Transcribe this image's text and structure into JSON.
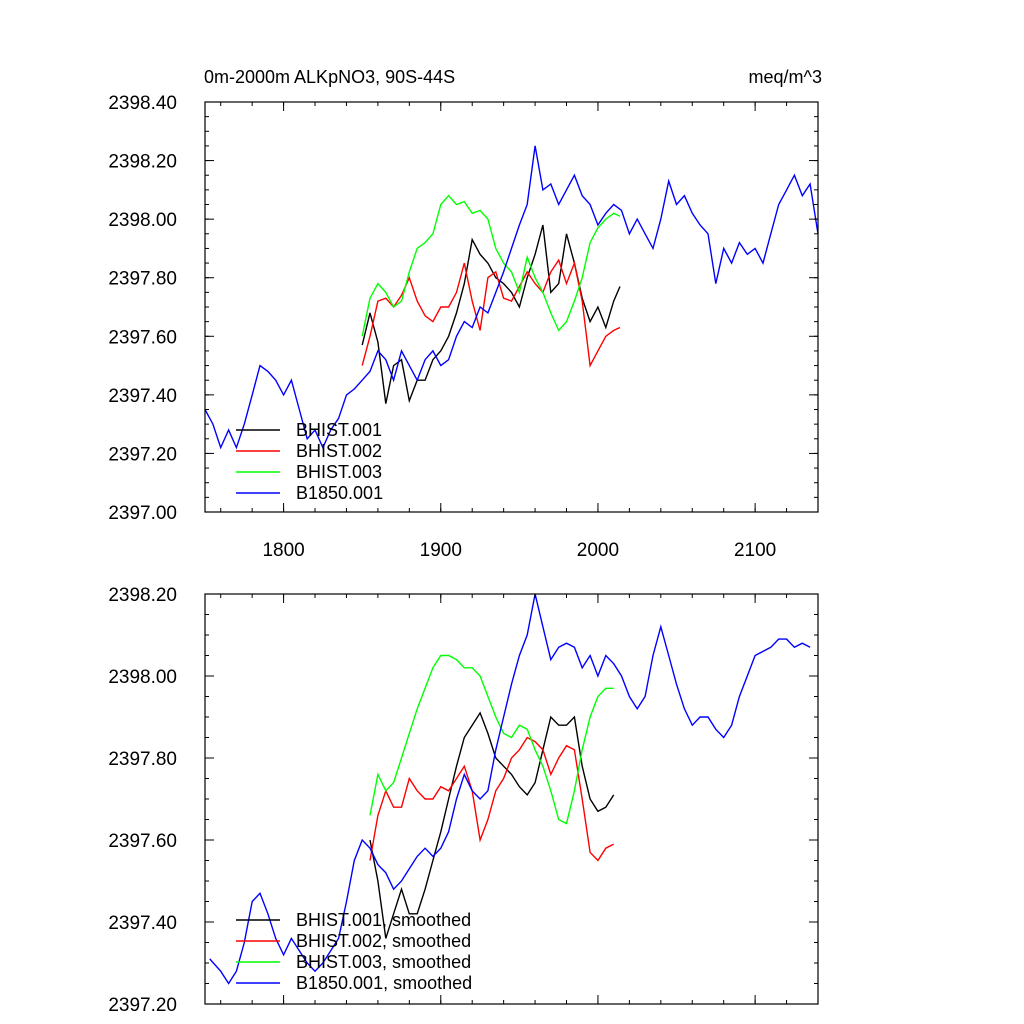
{
  "chart_data": [
    {
      "type": "line",
      "title_left": "0m-2000m ALKpNO3, 90S-44S",
      "title_right": "meq/m^3",
      "xlim": [
        1750,
        2140
      ],
      "ylim": [
        2397.0,
        2398.4
      ],
      "xticks": [
        1800,
        1900,
        2000,
        2100
      ],
      "xtick_labels": [
        "1800",
        "1900",
        "2000",
        "2100"
      ],
      "yticks": [
        2397.0,
        2397.2,
        2397.4,
        2397.6,
        2397.8,
        2398.0,
        2398.2,
        2398.4
      ],
      "ytick_labels": [
        "2397.00",
        "2397.20",
        "2397.40",
        "2397.60",
        "2397.80",
        "2398.00",
        "2398.20",
        "2398.40"
      ],
      "legend_position": "bottom-left",
      "series": [
        {
          "name": "BHIST.001",
          "color": "#000000",
          "x": [
            1850,
            1855,
            1860,
            1865,
            1870,
            1875,
            1880,
            1885,
            1890,
            1895,
            1900,
            1905,
            1910,
            1915,
            1920,
            1925,
            1930,
            1935,
            1940,
            1945,
            1950,
            1955,
            1960,
            1965,
            1970,
            1975,
            1980,
            1985,
            1990,
            1995,
            2000,
            2005,
            2010,
            2014
          ],
          "y": [
            2397.57,
            2397.68,
            2397.58,
            2397.37,
            2397.5,
            2397.52,
            2397.38,
            2397.45,
            2397.45,
            2397.52,
            2397.55,
            2397.6,
            2397.68,
            2397.78,
            2397.93,
            2397.88,
            2397.85,
            2397.8,
            2397.78,
            2397.75,
            2397.7,
            2397.8,
            2397.88,
            2397.98,
            2397.75,
            2397.78,
            2397.95,
            2397.85,
            2397.73,
            2397.65,
            2397.7,
            2397.63,
            2397.72,
            2397.77
          ]
        },
        {
          "name": "BHIST.002",
          "color": "#ff0000",
          "x": [
            1850,
            1855,
            1860,
            1865,
            1870,
            1875,
            1880,
            1885,
            1890,
            1895,
            1900,
            1905,
            1910,
            1915,
            1920,
            1925,
            1930,
            1935,
            1940,
            1945,
            1950,
            1955,
            1960,
            1965,
            1970,
            1975,
            1980,
            1985,
            1990,
            1995,
            2000,
            2005,
            2010,
            2014
          ],
          "y": [
            2397.5,
            2397.6,
            2397.72,
            2397.73,
            2397.7,
            2397.74,
            2397.8,
            2397.72,
            2397.67,
            2397.65,
            2397.7,
            2397.7,
            2397.75,
            2397.85,
            2397.72,
            2397.62,
            2397.8,
            2397.82,
            2397.73,
            2397.72,
            2397.77,
            2397.82,
            2397.78,
            2397.75,
            2397.82,
            2397.86,
            2397.78,
            2397.85,
            2397.72,
            2397.5,
            2397.55,
            2397.6,
            2397.62,
            2397.63
          ]
        },
        {
          "name": "BHIST.003",
          "color": "#00ff00",
          "x": [
            1850,
            1855,
            1860,
            1865,
            1870,
            1875,
            1880,
            1885,
            1890,
            1895,
            1900,
            1905,
            1910,
            1915,
            1920,
            1925,
            1930,
            1935,
            1940,
            1945,
            1950,
            1955,
            1960,
            1965,
            1970,
            1975,
            1980,
            1985,
            1990,
            1995,
            2000,
            2005,
            2010,
            2014
          ],
          "y": [
            2397.6,
            2397.73,
            2397.78,
            2397.75,
            2397.7,
            2397.72,
            2397.82,
            2397.9,
            2397.92,
            2397.95,
            2398.05,
            2398.08,
            2398.05,
            2398.06,
            2398.02,
            2398.03,
            2398.0,
            2397.9,
            2397.85,
            2397.82,
            2397.75,
            2397.87,
            2397.8,
            2397.75,
            2397.68,
            2397.62,
            2397.65,
            2397.72,
            2397.8,
            2397.92,
            2397.97,
            2398.0,
            2398.02,
            2398.01
          ]
        },
        {
          "name": "B1850.001",
          "color": "#0000ff",
          "x": [
            1750,
            1755,
            1760,
            1765,
            1770,
            1775,
            1780,
            1785,
            1790,
            1795,
            1800,
            1805,
            1810,
            1815,
            1820,
            1825,
            1830,
            1835,
            1840,
            1845,
            1850,
            1855,
            1860,
            1865,
            1870,
            1875,
            1880,
            1885,
            1890,
            1895,
            1900,
            1905,
            1910,
            1915,
            1920,
            1925,
            1930,
            1935,
            1940,
            1945,
            1950,
            1955,
            1960,
            1965,
            1970,
            1975,
            1980,
            1985,
            1990,
            1995,
            2000,
            2005,
            2010,
            2015,
            2020,
            2025,
            2030,
            2035,
            2040,
            2045,
            2050,
            2055,
            2060,
            2065,
            2070,
            2075,
            2080,
            2085,
            2090,
            2095,
            2100,
            2105,
            2110,
            2115,
            2120,
            2125,
            2130,
            2135,
            2140
          ],
          "y": [
            2397.35,
            2397.3,
            2397.22,
            2397.28,
            2397.22,
            2397.3,
            2397.4,
            2397.5,
            2397.48,
            2397.45,
            2397.4,
            2397.45,
            2397.35,
            2397.25,
            2397.28,
            2397.22,
            2397.28,
            2397.32,
            2397.4,
            2397.42,
            2397.45,
            2397.48,
            2397.55,
            2397.52,
            2397.45,
            2397.55,
            2397.5,
            2397.45,
            2397.52,
            2397.55,
            2397.5,
            2397.52,
            2397.6,
            2397.65,
            2397.63,
            2397.7,
            2397.68,
            2397.75,
            2397.82,
            2397.9,
            2397.98,
            2398.05,
            2398.25,
            2398.1,
            2398.12,
            2398.05,
            2398.1,
            2398.15,
            2398.08,
            2398.05,
            2397.98,
            2398.02,
            2398.05,
            2398.03,
            2397.95,
            2398.0,
            2397.95,
            2397.9,
            2398.0,
            2398.13,
            2398.05,
            2398.08,
            2398.02,
            2397.98,
            2397.95,
            2397.78,
            2397.9,
            2397.85,
            2397.92,
            2397.88,
            2397.9,
            2397.85,
            2397.95,
            2398.05,
            2398.1,
            2398.15,
            2398.08,
            2398.12,
            2397.95
          ]
        }
      ]
    },
    {
      "type": "line",
      "xlim": [
        1750,
        2140
      ],
      "ylim": [
        2397.2,
        2398.2
      ],
      "xticks": [
        1800,
        1900,
        2000,
        2100
      ],
      "yticks": [
        2397.2,
        2397.4,
        2397.6,
        2397.8,
        2398.0,
        2398.2
      ],
      "ytick_labels": [
        "2397.20",
        "2397.40",
        "2397.60",
        "2397.80",
        "2398.00",
        "2398.20"
      ],
      "legend_position": "bottom-left",
      "series": [
        {
          "name": "BHIST.001, smoothed",
          "color": "#000000",
          "x": [
            1855,
            1860,
            1865,
            1870,
            1875,
            1880,
            1885,
            1890,
            1895,
            1900,
            1905,
            1910,
            1915,
            1920,
            1925,
            1930,
            1935,
            1940,
            1945,
            1950,
            1955,
            1960,
            1965,
            1970,
            1975,
            1980,
            1985,
            1990,
            1995,
            2000,
            2005,
            2010
          ],
          "y": [
            2397.6,
            2397.5,
            2397.36,
            2397.42,
            2397.48,
            2397.42,
            2397.42,
            2397.48,
            2397.55,
            2397.62,
            2397.7,
            2397.78,
            2397.85,
            2397.88,
            2397.91,
            2397.86,
            2397.8,
            2397.78,
            2397.76,
            2397.73,
            2397.71,
            2397.74,
            2397.82,
            2397.9,
            2397.88,
            2397.88,
            2397.9,
            2397.78,
            2397.7,
            2397.67,
            2397.68,
            2397.71
          ]
        },
        {
          "name": "BHIST.002, smoothed",
          "color": "#ff0000",
          "x": [
            1855,
            1860,
            1865,
            1870,
            1875,
            1880,
            1885,
            1890,
            1895,
            1900,
            1905,
            1910,
            1915,
            1920,
            1925,
            1930,
            1935,
            1940,
            1945,
            1950,
            1955,
            1960,
            1965,
            1970,
            1975,
            1980,
            1985,
            1990,
            1995,
            2000,
            2005,
            2010
          ],
          "y": [
            2397.55,
            2397.66,
            2397.72,
            2397.68,
            2397.68,
            2397.75,
            2397.72,
            2397.7,
            2397.7,
            2397.73,
            2397.72,
            2397.75,
            2397.78,
            2397.72,
            2397.6,
            2397.65,
            2397.72,
            2397.75,
            2397.8,
            2397.82,
            2397.85,
            2397.84,
            2397.82,
            2397.76,
            2397.8,
            2397.83,
            2397.82,
            2397.7,
            2397.57,
            2397.55,
            2397.58,
            2397.59
          ]
        },
        {
          "name": "BHIST.003, smoothed",
          "color": "#00ff00",
          "x": [
            1855,
            1860,
            1865,
            1870,
            1875,
            1880,
            1885,
            1890,
            1895,
            1900,
            1905,
            1910,
            1915,
            1920,
            1925,
            1930,
            1935,
            1940,
            1945,
            1950,
            1955,
            1960,
            1965,
            1970,
            1975,
            1980,
            1985,
            1990,
            1995,
            2000,
            2005,
            2010
          ],
          "y": [
            2397.66,
            2397.76,
            2397.72,
            2397.74,
            2397.8,
            2397.86,
            2397.92,
            2397.97,
            2398.02,
            2398.05,
            2398.05,
            2398.04,
            2398.02,
            2398.02,
            2398.0,
            2397.95,
            2397.9,
            2397.86,
            2397.85,
            2397.88,
            2397.87,
            2397.82,
            2397.78,
            2397.72,
            2397.65,
            2397.64,
            2397.72,
            2397.82,
            2397.9,
            2397.95,
            2397.97,
            2397.97
          ]
        },
        {
          "name": "B1850.001, smoothed",
          "color": "#0000ff",
          "x": [
            1753,
            1760,
            1765,
            1770,
            1775,
            1780,
            1785,
            1790,
            1795,
            1800,
            1805,
            1810,
            1815,
            1820,
            1825,
            1830,
            1835,
            1840,
            1845,
            1850,
            1855,
            1860,
            1865,
            1870,
            1875,
            1880,
            1885,
            1890,
            1895,
            1900,
            1905,
            1910,
            1915,
            1920,
            1925,
            1930,
            1935,
            1940,
            1945,
            1950,
            1955,
            1960,
            1965,
            1970,
            1975,
            1980,
            1985,
            1990,
            1995,
            2000,
            2005,
            2010,
            2015,
            2020,
            2025,
            2030,
            2035,
            2040,
            2045,
            2050,
            2055,
            2060,
            2065,
            2070,
            2075,
            2080,
            2085,
            2090,
            2095,
            2100,
            2105,
            2110,
            2115,
            2120,
            2125,
            2130,
            2135
          ],
          "y": [
            2397.31,
            2397.28,
            2397.25,
            2397.28,
            2397.35,
            2397.45,
            2397.47,
            2397.42,
            2397.36,
            2397.32,
            2397.36,
            2397.33,
            2397.3,
            2397.28,
            2397.3,
            2397.33,
            2397.36,
            2397.45,
            2397.55,
            2397.6,
            2397.58,
            2397.54,
            2397.52,
            2397.48,
            2397.5,
            2397.53,
            2397.56,
            2397.58,
            2397.56,
            2397.58,
            2397.62,
            2397.7,
            2397.76,
            2397.72,
            2397.7,
            2397.72,
            2397.82,
            2397.9,
            2397.98,
            2398.05,
            2398.1,
            2398.2,
            2398.12,
            2398.04,
            2398.07,
            2398.08,
            2398.07,
            2398.02,
            2398.05,
            2398.0,
            2398.05,
            2398.03,
            2398.0,
            2397.95,
            2397.92,
            2397.95,
            2398.05,
            2398.12,
            2398.05,
            2397.98,
            2397.92,
            2397.88,
            2397.9,
            2397.9,
            2397.87,
            2397.85,
            2397.88,
            2397.95,
            2398.0,
            2398.05,
            2398.06,
            2398.07,
            2398.09,
            2398.09,
            2398.07,
            2398.08,
            2398.07
          ]
        }
      ]
    }
  ]
}
